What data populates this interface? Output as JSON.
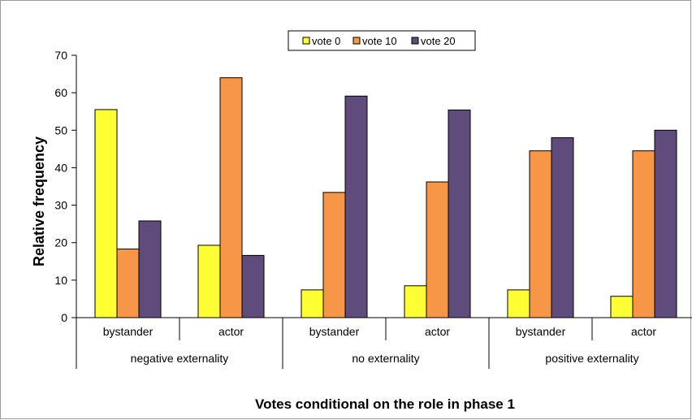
{
  "chart_data": {
    "type": "bar",
    "title": "",
    "xlabel": "Votes conditional on the role in phase 1",
    "ylabel": "Relative frequency",
    "ylim": [
      0,
      70
    ],
    "yticks": [
      0,
      10,
      20,
      30,
      40,
      50,
      60,
      70
    ],
    "grid": false,
    "legend_position": "top-center",
    "categories": [
      "bystander",
      "actor",
      "bystander",
      "actor",
      "bystander",
      "actor"
    ],
    "groups": [
      {
        "label": "negative externality",
        "categories": [
          "bystander",
          "actor"
        ]
      },
      {
        "label": "no externality",
        "categories": [
          "bystander",
          "actor"
        ]
      },
      {
        "label": "positive externality",
        "categories": [
          "bystander",
          "actor"
        ]
      }
    ],
    "series": [
      {
        "name": "vote 0",
        "color": "#ffff33",
        "values": [
          55.5,
          19.3,
          7.4,
          8.5,
          7.4,
          5.7
        ]
      },
      {
        "name": "vote 10",
        "color": "#f79646",
        "values": [
          18.3,
          64.0,
          33.4,
          36.2,
          44.5,
          44.5
        ]
      },
      {
        "name": "vote 20",
        "color": "#5f4b7c",
        "values": [
          25.8,
          16.6,
          59.1,
          55.4,
          48.0,
          50.0
        ]
      }
    ]
  }
}
